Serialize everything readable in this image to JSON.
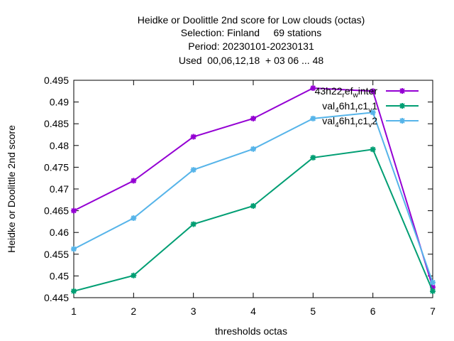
{
  "chart_data": {
    "type": "line",
    "title_lines": [
      "Heidke or Doolittle 2nd score  for Low clouds (octas)",
      "Selection: Finland     69 stations",
      "Period: 20230101-20230131",
      "Used  00,06,12,18  + 03 06 ... 48"
    ],
    "xlabel": "thresholds octas",
    "ylabel": "Heidke or Doolittle 2nd score",
    "x": [
      1,
      2,
      3,
      4,
      5,
      6,
      7
    ],
    "xlim": [
      1,
      7
    ],
    "ylim": [
      0.445,
      0.495
    ],
    "xticks": [
      "1",
      "2",
      "3",
      "4",
      "5",
      "6",
      "7"
    ],
    "yticks": [
      "0.445",
      "0.45",
      "0.455",
      "0.46",
      "0.465",
      "0.47",
      "0.475",
      "0.48",
      "0.485",
      "0.49",
      "0.495"
    ],
    "grid": false,
    "legend_position": "top-right",
    "series": [
      {
        "name": "43h22_ref_winter",
        "legend": {
          "base": "43h22",
          "parts": [
            {
              "t": "r",
              "s": "sub"
            },
            {
              "t": "ef",
              "s": ""
            },
            {
              "t": "w",
              "s": "sub"
            },
            {
              "t": "inter",
              "s": ""
            }
          ]
        },
        "color": "#9400d3",
        "values": [
          0.465,
          0.4719,
          0.482,
          0.4862,
          0.4932,
          0.4925,
          0.4474
        ]
      },
      {
        "name": "val_46h1_rc1_v1",
        "legend": {
          "base": "val",
          "parts": [
            {
              "t": "4",
              "s": "sub"
            },
            {
              "t": "6h1",
              "s": ""
            },
            {
              "t": "r",
              "s": "sub"
            },
            {
              "t": "c1",
              "s": ""
            },
            {
              "t": "v",
              "s": "sub"
            },
            {
              "t": "1",
              "s": ""
            }
          ]
        },
        "color": "#009e73",
        "values": [
          0.4465,
          0.4501,
          0.4619,
          0.4661,
          0.4772,
          0.4791,
          0.4465
        ]
      },
      {
        "name": "val_46h1_rc1_v2",
        "legend": {
          "base": "val",
          "parts": [
            {
              "t": "4",
              "s": "sub"
            },
            {
              "t": "6h1",
              "s": ""
            },
            {
              "t": "r",
              "s": "sub"
            },
            {
              "t": "c1",
              "s": ""
            },
            {
              "t": "v",
              "s": "sub"
            },
            {
              "t": "2",
              "s": ""
            }
          ]
        },
        "color": "#56b4e9",
        "values": [
          0.4562,
          0.4633,
          0.4744,
          0.4792,
          0.4862,
          0.4876,
          0.4485
        ]
      }
    ]
  }
}
